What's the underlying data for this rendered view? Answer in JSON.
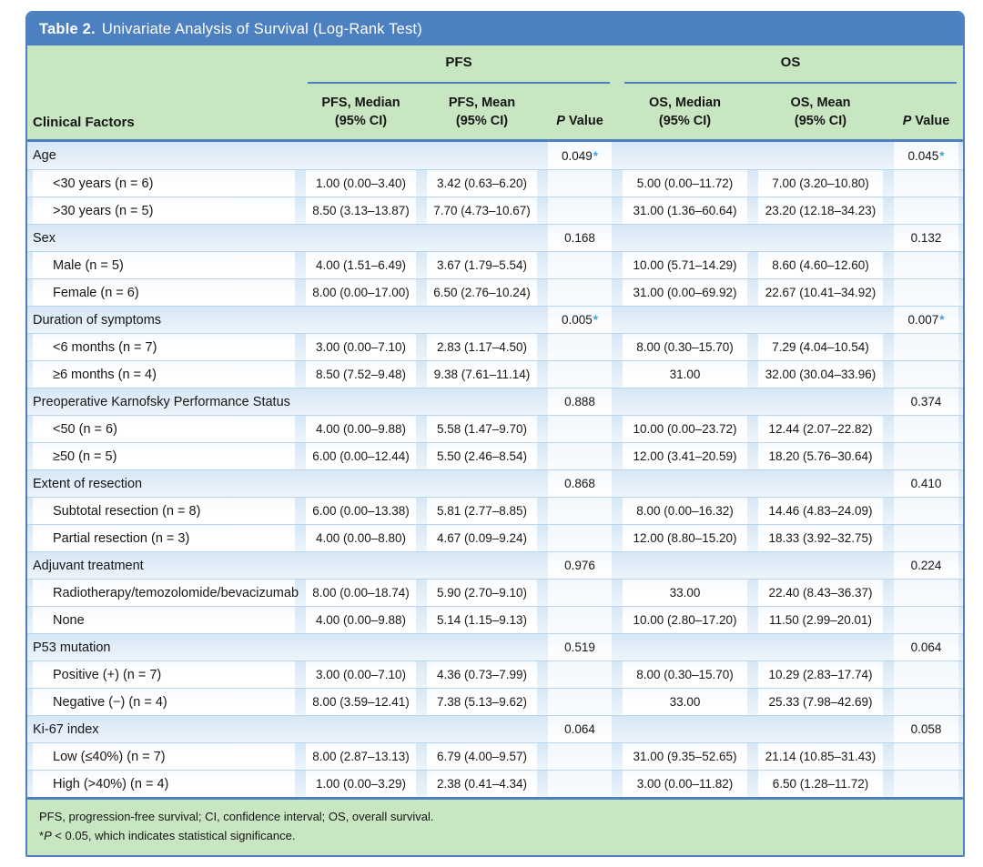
{
  "title": {
    "label": "Table 2.",
    "text": "Univariate Analysis of Survival (Log-Rank Test)"
  },
  "colors": {
    "accent_blue": "#4d80c0",
    "header_green": "#c9e6c3",
    "row_blue": "#d7e7f6",
    "sep_blue": "#b9d5ee",
    "star_blue": "#44a0d8",
    "ink": "#161616"
  },
  "table": {
    "star_char": "*",
    "header": {
      "factor_label": "Clinical Factors",
      "groups": [
        {
          "label": "PFS"
        },
        {
          "label": "OS"
        }
      ],
      "cols": [
        {
          "line1": "PFS, Median",
          "line2": "(95% CI)"
        },
        {
          "line1": "PFS, Mean",
          "line2": "(95% CI)"
        },
        {
          "line1": "OS, Median",
          "line2": "(95% CI)"
        },
        {
          "line1": "OS, Mean",
          "line2": "(95% CI)"
        }
      ],
      "p_italic": "P",
      "p_rest": " Value"
    },
    "rows": [
      {
        "factor": "Age",
        "category": true,
        "pfs_median": "",
        "pfs_mean": "",
        "pfs_p": "0.049",
        "pfs_p_star": true,
        "os_median": "",
        "os_mean": "",
        "os_p": "0.045",
        "os_p_star": true
      },
      {
        "factor": "<30 years (n = 6)",
        "category": false,
        "pfs_median": "1.00 (0.00–3.40)",
        "pfs_mean": "3.42 (0.63–6.20)",
        "pfs_p": "",
        "os_median": "5.00 (0.00–11.72)",
        "os_mean": "7.00 (3.20–10.80)",
        "os_p": ""
      },
      {
        "factor": ">30 years (n = 5)",
        "category": false,
        "pfs_median": "8.50 (3.13–13.87)",
        "pfs_mean": "7.70 (4.73–10.67)",
        "pfs_p": "",
        "os_median": "31.00 (1.36–60.64)",
        "os_mean": "23.20 (12.18–34.23)",
        "os_p": ""
      },
      {
        "factor": "Sex",
        "category": true,
        "pfs_median": "",
        "pfs_mean": "",
        "pfs_p": "0.168",
        "os_median": "",
        "os_mean": "",
        "os_p": "0.132"
      },
      {
        "factor": "Male (n = 5)",
        "category": false,
        "pfs_median": "4.00 (1.51–6.49)",
        "pfs_mean": "3.67 (1.79–5.54)",
        "pfs_p": "",
        "os_median": "10.00 (5.71–14.29)",
        "os_mean": "8.60 (4.60–12.60)",
        "os_p": ""
      },
      {
        "factor": "Female (n = 6)",
        "category": false,
        "pfs_median": "8.00 (0.00–17.00)",
        "pfs_mean": "6.50 (2.76–10.24)",
        "pfs_p": "",
        "os_median": "31.00 (0.00–69.92)",
        "os_mean": "22.67 (10.41–34.92)",
        "os_p": ""
      },
      {
        "factor": "Duration of symptoms",
        "category": true,
        "pfs_median": "",
        "pfs_mean": "",
        "pfs_p": "0.005",
        "pfs_p_star": true,
        "os_median": "",
        "os_mean": "",
        "os_p": "0.007",
        "os_p_star": true
      },
      {
        "factor": "<6 months (n = 7)",
        "category": false,
        "pfs_median": "3.00 (0.00–7.10)",
        "pfs_mean": "2.83 (1.17–4.50)",
        "pfs_p": "",
        "os_median": "8.00 (0.30–15.70)",
        "os_mean": "7.29 (4.04–10.54)",
        "os_p": ""
      },
      {
        "factor": "≥6 months (n = 4)",
        "category": false,
        "pfs_median": "8.50 (7.52–9.48)",
        "pfs_mean": "9.38 (7.61–11.14)",
        "pfs_p": "",
        "os_median": "31.00",
        "os_mean": "32.00 (30.04–33.96)",
        "os_p": ""
      },
      {
        "factor": "Preoperative Karnofsky Performance Status",
        "category": true,
        "pfs_median": "",
        "pfs_mean": "",
        "pfs_p": "0.888",
        "os_median": "",
        "os_mean": "",
        "os_p": "0.374"
      },
      {
        "factor": "<50 (n = 6)",
        "category": false,
        "pfs_median": "4.00 (0.00–9.88)",
        "pfs_mean": "5.58 (1.47–9.70)",
        "pfs_p": "",
        "os_median": "10.00 (0.00–23.72)",
        "os_mean": "12.44 (2.07–22.82)",
        "os_p": ""
      },
      {
        "factor": "≥50 (n = 5)",
        "category": false,
        "pfs_median": "6.00 (0.00–12.44)",
        "pfs_mean": "5.50 (2.46–8.54)",
        "pfs_p": "",
        "os_median": "12.00 (3.41–20.59)",
        "os_mean": "18.20 (5.76–30.64)",
        "os_p": ""
      },
      {
        "factor": "Extent of resection",
        "category": true,
        "pfs_median": "",
        "pfs_mean": "",
        "pfs_p": "0.868",
        "os_median": "",
        "os_mean": "",
        "os_p": "0.410"
      },
      {
        "factor": "Subtotal resection (n = 8)",
        "category": false,
        "pfs_median": "6.00 (0.00–13.38)",
        "pfs_mean": "5.81 (2.77–8.85)",
        "pfs_p": "",
        "os_median": "8.00 (0.00–16.32)",
        "os_mean": "14.46 (4.83–24.09)",
        "os_p": ""
      },
      {
        "factor": "Partial resection (n = 3)",
        "category": false,
        "pfs_median": "4.00 (0.00–8.80)",
        "pfs_mean": "4.67 (0.09–9.24)",
        "pfs_p": "",
        "os_median": "12.00 (8.80–15.20)",
        "os_mean": "18.33 (3.92–32.75)",
        "os_p": ""
      },
      {
        "factor": "Adjuvant treatment",
        "category": true,
        "pfs_median": "",
        "pfs_mean": "",
        "pfs_p": "0.976",
        "os_median": "",
        "os_mean": "",
        "os_p": "0.224"
      },
      {
        "factor": "Radiotherapy/temozolomide/bevacizumab",
        "category": false,
        "pfs_median": "8.00 (0.00–18.74)",
        "pfs_mean": "5.90 (2.70–9.10)",
        "pfs_p": "",
        "os_median": "33.00",
        "os_mean": "22.40 (8.43–36.37)",
        "os_p": ""
      },
      {
        "factor": "None",
        "category": false,
        "pfs_median": "4.00 (0.00–9.88)",
        "pfs_mean": "5.14 (1.15–9.13)",
        "pfs_p": "",
        "os_median": "10.00 (2.80–17.20)",
        "os_mean": "11.50 (2.99–20.01)",
        "os_p": ""
      },
      {
        "factor": "P53 mutation",
        "category": true,
        "pfs_median": "",
        "pfs_mean": "",
        "pfs_p": "0.519",
        "os_median": "",
        "os_mean": "",
        "os_p": "0.064"
      },
      {
        "factor": "Positive (+) (n = 7)",
        "category": false,
        "pfs_median": "3.00 (0.00–7.10)",
        "pfs_mean": "4.36 (0.73–7.99)",
        "pfs_p": "",
        "os_median": "8.00 (0.30–15.70)",
        "os_mean": "10.29 (2.83–17.74)",
        "os_p": ""
      },
      {
        "factor": "Negative (−) (n = 4)",
        "category": false,
        "pfs_median": "8.00 (3.59–12.41)",
        "pfs_mean": "7.38 (5.13–9.62)",
        "pfs_p": "",
        "os_median": "33.00",
        "os_mean": "25.33 (7.98–42.69)",
        "os_p": ""
      },
      {
        "factor": "Ki-67 index",
        "category": true,
        "pfs_median": "",
        "pfs_mean": "",
        "pfs_p": "0.064",
        "os_median": "",
        "os_mean": "",
        "os_p": "0.058"
      },
      {
        "factor": "Low (≤40%) (n = 7)",
        "category": false,
        "pfs_median": "8.00 (2.87–13.13)",
        "pfs_mean": "6.79 (4.00–9.57)",
        "pfs_p": "",
        "os_median": "31.00 (9.35–52.65)",
        "os_mean": "21.14 (10.85–31.43)",
        "os_p": ""
      },
      {
        "factor": "High (>40%) (n = 4)",
        "category": false,
        "pfs_median": "1.00 (0.00–3.29)",
        "pfs_mean": "2.38 (0.41–4.34)",
        "pfs_p": "",
        "os_median": "3.00 (0.00–11.82)",
        "os_mean": "6.50 (1.28–11.72)",
        "os_p": ""
      }
    ]
  },
  "footnotes": {
    "abbreviations": "PFS, progression-free survival; CI, confidence interval; OS, overall survival.",
    "sig_star": "*",
    "sig_p": "P",
    "sig_rest": " < 0.05, which indicates statistical significance."
  }
}
